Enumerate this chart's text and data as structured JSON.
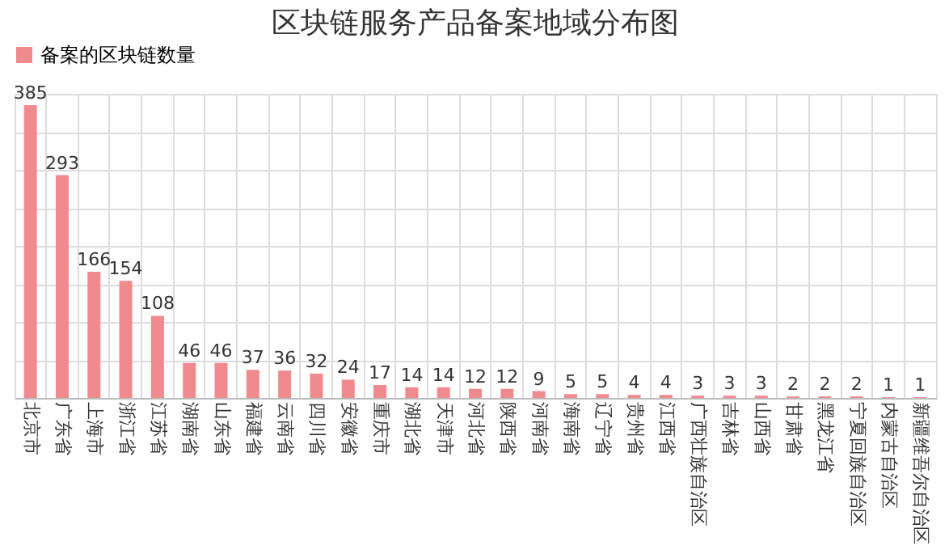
{
  "chart_data": {
    "type": "bar",
    "title": "区块链服务产品备案地域分布图",
    "categories": [
      "北京市",
      "广东省",
      "上海市",
      "浙江省",
      "江苏省",
      "湖南省",
      "山东省",
      "福建省",
      "云南省",
      "四川省",
      "安徽省",
      "重庆市",
      "湖北省",
      "天津市",
      "河北省",
      "陕西省",
      "河南省",
      "海南省",
      "辽宁省",
      "贵州省",
      "江西省",
      "广西壮族自治区",
      "吉林省",
      "山西省",
      "甘肃省",
      "黑龙江省",
      "宁夏回族自治区",
      "内蒙古自治区",
      "新疆维吾尔自治区"
    ],
    "series": [
      {
        "name": "备案的区块链数量",
        "color": "#f08a8f",
        "values": [
          385,
          293,
          166,
          154,
          108,
          46,
          46,
          37,
          36,
          32,
          24,
          17,
          14,
          14,
          12,
          12,
          9,
          5,
          5,
          4,
          4,
          3,
          3,
          3,
          2,
          2,
          2,
          1,
          1
        ]
      }
    ],
    "ylim": [
      0,
      400
    ],
    "tick_labels": "x",
    "grid": true,
    "legend": "top",
    "data_labels": true
  }
}
